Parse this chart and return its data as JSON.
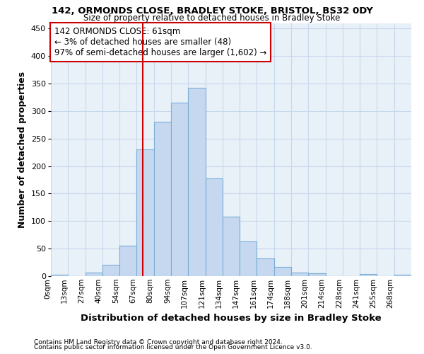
{
  "title1": "142, ORMONDS CLOSE, BRADLEY STOKE, BRISTOL, BS32 0DY",
  "title2": "Size of property relative to detached houses in Bradley Stoke",
  "xlabel": "Distribution of detached houses by size in Bradley Stoke",
  "ylabel": "Number of detached properties",
  "footnote1": "Contains HM Land Registry data © Crown copyright and database right 2024.",
  "footnote2": "Contains public sector information licensed under the Open Government Licence v3.0.",
  "bin_labels": [
    "0sqm",
    "13sqm",
    "27sqm",
    "40sqm",
    "54sqm",
    "67sqm",
    "80sqm",
    "94sqm",
    "107sqm",
    "121sqm",
    "134sqm",
    "147sqm",
    "161sqm",
    "174sqm",
    "188sqm",
    "201sqm",
    "214sqm",
    "228sqm",
    "241sqm",
    "255sqm",
    "268sqm"
  ],
  "bar_values": [
    3,
    0,
    6,
    20,
    55,
    230,
    280,
    315,
    342,
    178,
    108,
    63,
    32,
    17,
    7,
    5,
    0,
    0,
    4,
    0,
    3
  ],
  "bar_color": "#C5D8F0",
  "bar_edge_color": "#7AAFD4",
  "grid_color": "#C8D8EC",
  "vline_x_index": 5,
  "annotation_text": "142 ORMONDS CLOSE: 61sqm\n← 3% of detached houses are smaller (48)\n97% of semi-detached houses are larger (1,602) →",
  "annotation_box_color": "white",
  "annotation_box_edge_color": "#CC0000",
  "ylim": [
    0,
    460
  ],
  "yticks": [
    0,
    50,
    100,
    150,
    200,
    250,
    300,
    350,
    400,
    450
  ],
  "fig_background": "white",
  "plot_background": "#E8F0F8",
  "title1_fontsize": 9.5,
  "title2_fontsize": 8.5
}
